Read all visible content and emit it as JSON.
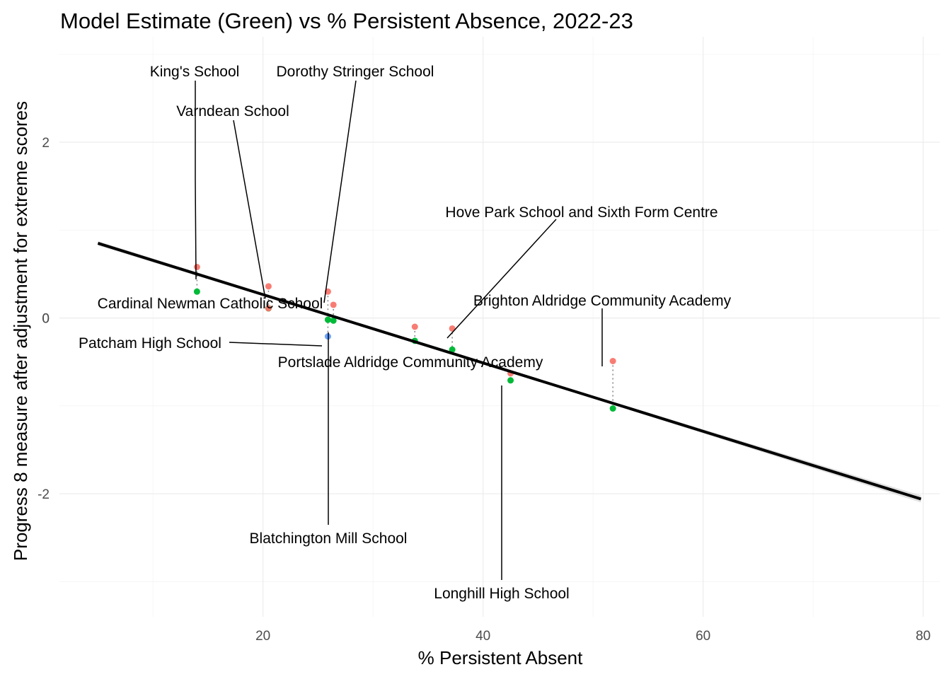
{
  "chart_data": {
    "type": "scatter",
    "title": "Model Estimate (Green) vs % Persistent Absence, 2022-23",
    "xlabel": "% Persistent Absent",
    "ylabel": "Progress 8 measure after adjustment for extreme scores",
    "xlim": [
      1.5,
      81.5
    ],
    "ylim": [
      -3.4,
      3.2
    ],
    "x_ticks": [
      20,
      40,
      60,
      80
    ],
    "y_ticks": [
      -2,
      0,
      2
    ],
    "grid": true,
    "legend": "none",
    "colors": {
      "above_model": "#F8766D",
      "below_model": "#619CFF",
      "model_estimate": "#00BA38",
      "fit_line": "#000000",
      "confidence_band": "#cccccc"
    },
    "fit_line": {
      "x": [
        5.0,
        79.8
      ],
      "y": [
        0.85,
        -2.06
      ]
    },
    "schools": [
      {
        "name": "King's School",
        "x": 14.0,
        "actual": 0.58,
        "estimate": 0.3
      },
      {
        "name": "Cardinal Newman Catholic School",
        "x": 20.5,
        "actual": 0.36,
        "estimate": 0.11
      },
      {
        "name": "Varndean School",
        "x": 20.5,
        "actual": 0.11,
        "estimate": 0.11
      },
      {
        "name": "Patcham High School",
        "x": 25.9,
        "actual": -0.21,
        "estimate": -0.02
      },
      {
        "name": "Dorothy Stringer School",
        "x": 25.9,
        "actual": 0.3,
        "estimate": -0.02
      },
      {
        "name": "Blatchington Mill School",
        "x": 26.4,
        "actual": 0.15,
        "estimate": -0.03
      },
      {
        "name": "Portslade Aldridge Community Academy",
        "x": 33.8,
        "actual": -0.1,
        "estimate": -0.26
      },
      {
        "name": "Hove Park School and Sixth Form Centre",
        "x": 37.2,
        "actual": -0.12,
        "estimate": -0.36
      },
      {
        "name": "Longhill High School",
        "x": 42.5,
        "actual": -0.63,
        "estimate": -0.71
      },
      {
        "name": "Brighton Aldridge Community Academy",
        "x": 51.8,
        "actual": -0.49,
        "estimate": -1.03
      }
    ]
  }
}
